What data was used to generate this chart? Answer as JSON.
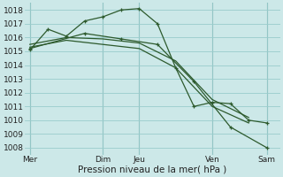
{
  "background_color": "#cce8e8",
  "grid_color": "#99cccc",
  "line_color": "#2d5a2d",
  "marker_color": "#2d5a2d",
  "xlabel": "Pression niveau de la mer( hPa )",
  "ylim": [
    1007.5,
    1018.5
  ],
  "yticks": [
    1008,
    1009,
    1010,
    1011,
    1012,
    1013,
    1014,
    1015,
    1016,
    1017,
    1018
  ],
  "xtick_labels": [
    "Mer",
    "Dim",
    "Jeu",
    "Ven",
    "Sam"
  ],
  "xtick_positions": [
    0,
    28,
    42,
    70,
    91
  ],
  "xlim": [
    -2,
    96
  ],
  "series": [
    {
      "x": [
        0,
        7,
        14,
        21,
        28,
        35,
        42,
        49,
        56,
        63,
        70,
        77,
        84,
        91
      ],
      "y": [
        1015.1,
        1016.6,
        1016.1,
        1017.2,
        1017.5,
        1018.0,
        1018.1,
        1017.0,
        1013.8,
        1011.0,
        1011.3,
        1011.2,
        1010.0,
        1009.8
      ],
      "marker": "+"
    },
    {
      "x": [
        0,
        14,
        28,
        42,
        56,
        70,
        84
      ],
      "y": [
        1015.5,
        1016.0,
        1015.9,
        1015.6,
        1014.3,
        1011.5,
        1010.2
      ],
      "marker": null
    },
    {
      "x": [
        0,
        14,
        28,
        42,
        56,
        70,
        84
      ],
      "y": [
        1015.3,
        1015.8,
        1015.5,
        1015.2,
        1013.8,
        1011.0,
        1009.8
      ],
      "marker": null
    },
    {
      "x": [
        0,
        21,
        35,
        49,
        63,
        77,
        91
      ],
      "y": [
        1015.2,
        1016.3,
        1015.9,
        1015.5,
        1012.8,
        1009.5,
        1008.0
      ],
      "marker": "+"
    }
  ],
  "vline_positions": [
    0,
    28,
    42,
    70,
    91
  ],
  "tick_fontsize": 6.5,
  "label_fontsize": 7.5
}
